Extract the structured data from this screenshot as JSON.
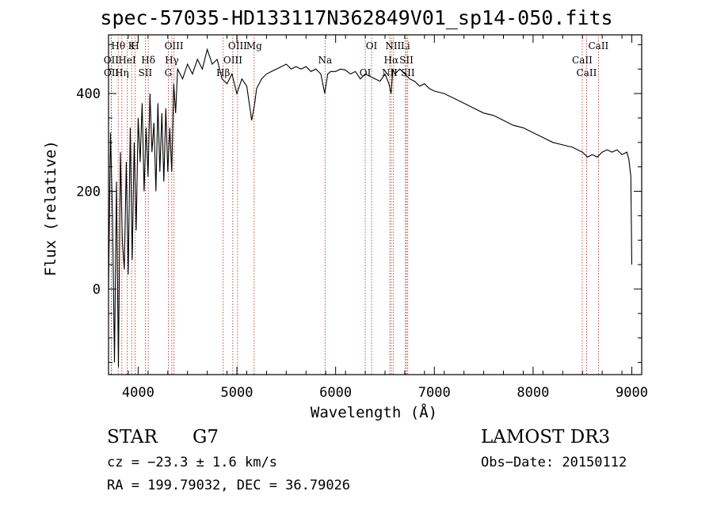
{
  "chart_data": {
    "type": "line",
    "title": "spec-57035-HD133117N362849V01_sp14-050.fits",
    "xlabel": "Wavelength (Å)",
    "ylabel": "Flux (relative)",
    "xlim": [
      3700,
      9100
    ],
    "ylim": [
      -175,
      520
    ],
    "xticks": [
      4000,
      5000,
      6000,
      7000,
      8000,
      9000
    ],
    "yticks": [
      0,
      200,
      400
    ],
    "series": [
      {
        "name": "flux",
        "x": [
          3700,
          3720,
          3740,
          3760,
          3780,
          3800,
          3820,
          3840,
          3860,
          3880,
          3900,
          3920,
          3940,
          3960,
          3980,
          4000,
          4020,
          4040,
          4060,
          4080,
          4100,
          4120,
          4140,
          4160,
          4180,
          4200,
          4220,
          4240,
          4260,
          4280,
          4300,
          4320,
          4340,
          4360,
          4380,
          4400,
          4450,
          4500,
          4550,
          4600,
          4650,
          4700,
          4750,
          4800,
          4850,
          4900,
          4950,
          5000,
          5050,
          5100,
          5150,
          5180,
          5200,
          5250,
          5300,
          5350,
          5400,
          5450,
          5500,
          5550,
          5600,
          5650,
          5700,
          5750,
          5800,
          5850,
          5890,
          5920,
          5950,
          6000,
          6050,
          6100,
          6150,
          6200,
          6250,
          6300,
          6350,
          6400,
          6450,
          6500,
          6540,
          6562,
          6580,
          6600,
          6650,
          6700,
          6750,
          6800,
          6850,
          6900,
          6950,
          7000,
          7100,
          7200,
          7300,
          7400,
          7500,
          7600,
          7700,
          7800,
          7900,
          8000,
          8100,
          8200,
          8300,
          8400,
          8450,
          8500,
          8550,
          8600,
          8650,
          8700,
          8750,
          8800,
          8850,
          8900,
          8950,
          8970,
          8990,
          9000
        ],
        "y": [
          0,
          320,
          150,
          -150,
          220,
          -160,
          280,
          100,
          40,
          260,
          30,
          330,
          60,
          300,
          120,
          350,
          260,
          380,
          200,
          330,
          230,
          400,
          280,
          340,
          200,
          380,
          240,
          360,
          220,
          370,
          240,
          330,
          240,
          420,
          360,
          450,
          430,
          460,
          440,
          470,
          450,
          490,
          460,
          470,
          430,
          420,
          440,
          400,
          430,
          415,
          345,
          380,
          410,
          430,
          440,
          445,
          450,
          455,
          460,
          450,
          455,
          450,
          455,
          445,
          450,
          440,
          400,
          440,
          445,
          445,
          450,
          448,
          440,
          445,
          430,
          440,
          435,
          430,
          425,
          440,
          420,
          400,
          450,
          440,
          450,
          440,
          430,
          425,
          415,
          420,
          410,
          405,
          400,
          390,
          380,
          370,
          360,
          355,
          345,
          335,
          330,
          320,
          310,
          300,
          295,
          290,
          285,
          280,
          270,
          275,
          270,
          280,
          285,
          280,
          285,
          275,
          280,
          265,
          230,
          50
        ]
      }
    ],
    "annotations": [
      {
        "label": "Hθ",
        "wave": 3798
      },
      {
        "label": "OII",
        "wave": 3727
      },
      {
        "label": "OII",
        "wave": 3729
      },
      {
        "label": "K",
        "wave": 3934
      },
      {
        "label": "HeI",
        "wave": 3889
      },
      {
        "label": "Hη",
        "wave": 3835
      },
      {
        "label": "H",
        "wave": 3969
      },
      {
        "label": "Hδ",
        "wave": 4102
      },
      {
        "label": "SII",
        "wave": 4072
      },
      {
        "label": "OIII",
        "wave": 4363
      },
      {
        "label": "Hγ",
        "wave": 4341
      },
      {
        "label": "G",
        "wave": 4305
      },
      {
        "label": "OIII",
        "wave": 5007
      },
      {
        "label": "OIII",
        "wave": 4959
      },
      {
        "label": "Hβ",
        "wave": 4861
      },
      {
        "label": "Mg",
        "wave": 5175
      },
      {
        "label": "Na",
        "wave": 5893
      },
      {
        "label": "OI",
        "wave": 6300
      },
      {
        "label": "OI",
        "wave": 6364
      },
      {
        "label": "Hα",
        "wave": 6563
      },
      {
        "label": "NII",
        "wave": 6548
      },
      {
        "label": "NII",
        "wave": 6583
      },
      {
        "label": "SII",
        "wave": 6717
      },
      {
        "label": "SII",
        "wave": 6731
      },
      {
        "label": "Li",
        "wave": 6707
      },
      {
        "label": "CaII",
        "wave": 8498
      },
      {
        "label": "CaII",
        "wave": 8542
      },
      {
        "label": "CaII",
        "wave": 8662
      }
    ]
  },
  "info": {
    "object_class": "STAR",
    "subclass": "G7",
    "cz": "cz = −23.3 ± 1.6 km/s",
    "coords": "RA = 199.79032, DEC =  36.79026",
    "survey": "LAMOST DR3",
    "obs_date": "Obs−Date: 20150112"
  },
  "colors": {
    "line": "#000000",
    "marker": "#b22222",
    "background": "#ffffff"
  }
}
